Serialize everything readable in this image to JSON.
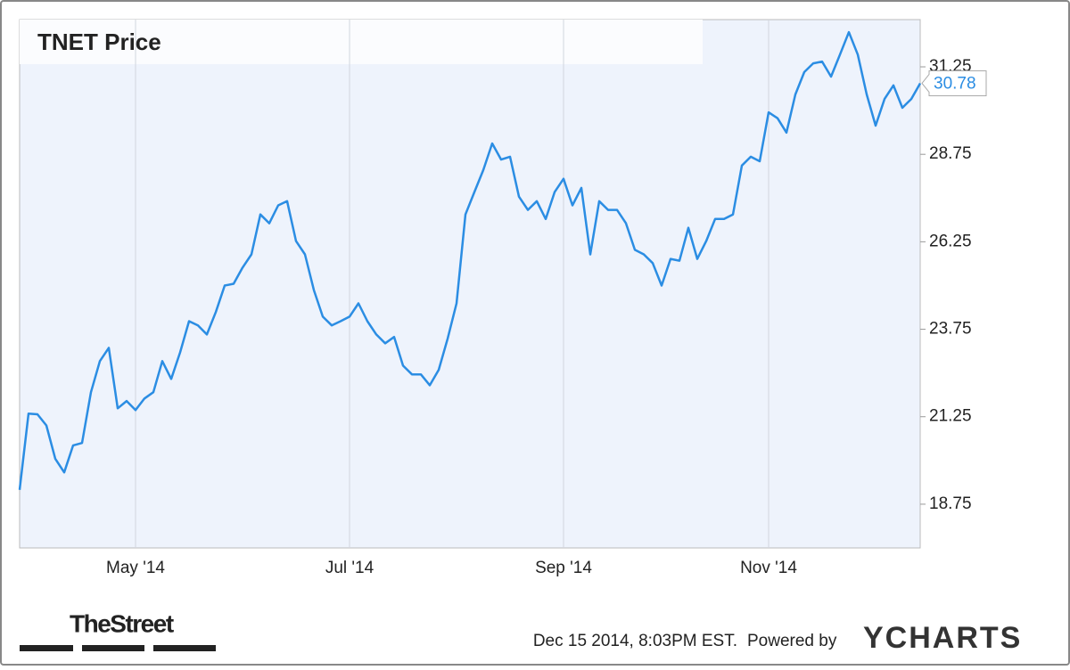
{
  "chart_data": {
    "type": "line",
    "title": "TNET Price",
    "color": "#2b8de3",
    "x_grid": true,
    "categories": [
      null,
      null,
      null,
      null,
      null,
      null,
      null,
      null,
      null,
      null,
      null,
      null,
      null,
      "May '14",
      null,
      null,
      null,
      null,
      null,
      null,
      null,
      null,
      null,
      null,
      null,
      null,
      null,
      null,
      null,
      null,
      null,
      null,
      null,
      null,
      null,
      null,
      null,
      "Jul '14",
      null,
      null,
      null,
      null,
      null,
      null,
      null,
      null,
      null,
      null,
      null,
      null,
      null,
      null,
      null,
      null,
      null,
      null,
      null,
      null,
      null,
      null,
      null,
      "Sep '14",
      null,
      null,
      null,
      null,
      null,
      null,
      null,
      null,
      null,
      null,
      null,
      null,
      null,
      null,
      null,
      null,
      null,
      null,
      null,
      null,
      null,
      null,
      "Nov '14",
      null,
      null,
      null,
      null,
      null,
      null,
      null,
      null,
      null,
      null,
      null,
      null,
      null,
      null,
      null,
      null,
      null
    ],
    "values": [
      19.16,
      21.34,
      21.32,
      21.0,
      20.05,
      19.66,
      20.43,
      20.5,
      21.95,
      22.84,
      23.22,
      21.49,
      21.7,
      21.44,
      21.77,
      21.95,
      22.84,
      22.33,
      23.09,
      23.98,
      23.86,
      23.6,
      24.24,
      25.0,
      25.05,
      25.51,
      25.89,
      27.03,
      26.78,
      27.29,
      27.41,
      26.27,
      25.89,
      24.87,
      24.11,
      23.86,
      23.98,
      24.11,
      24.49,
      23.98,
      23.6,
      23.35,
      23.53,
      22.71,
      22.46,
      22.46,
      22.15,
      22.59,
      23.48,
      24.49,
      27.03,
      27.67,
      28.3,
      29.06,
      28.6,
      28.68,
      27.54,
      27.16,
      27.41,
      26.9,
      27.67,
      28.05,
      27.29,
      27.79,
      25.89,
      27.41,
      27.16,
      27.16,
      26.78,
      26.02,
      25.89,
      25.64,
      25.0,
      25.76,
      25.71,
      26.65,
      25.76,
      26.27,
      26.9,
      26.9,
      27.03,
      28.43,
      28.68,
      28.55,
      29.95,
      29.78,
      29.37,
      30.46,
      31.1,
      31.35,
      31.4,
      30.97,
      31.6,
      32.24,
      31.6,
      30.46,
      29.57,
      30.33,
      30.72,
      30.08,
      30.33,
      30.78
    ],
    "ylim": [
      17.5,
      32.6
    ],
    "yticks": [
      18.75,
      21.25,
      23.75,
      26.25,
      28.75,
      31.25
    ]
  },
  "footer": {
    "source": "TheStreet",
    "timestamp": "Dec 15 2014, 8:03PM EST.",
    "powered_by": "Powered by",
    "brand": "YCHARTS"
  }
}
